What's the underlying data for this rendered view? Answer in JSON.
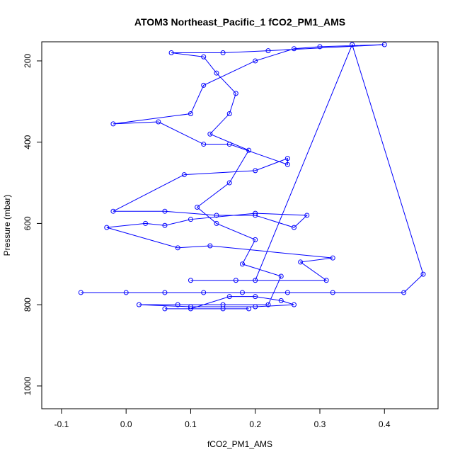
{
  "chart_data": {
    "type": "scatter",
    "title": "ATOM3 Northeast_Pacific_1 fCO2_PM1_AMS",
    "x_label": "fCO2_PM1_AMS",
    "y_label": "Pressure (mbar)",
    "color": "#0000ff",
    "x": [
      -0.07,
      0.0,
      0.06,
      0.12,
      0.18,
      0.25,
      0.32,
      0.43,
      0.46,
      0.35,
      0.2,
      0.17,
      0.1,
      0.31,
      0.27,
      0.32,
      0.13,
      0.08,
      -0.03,
      0.03,
      0.06,
      0.1,
      0.2,
      0.28,
      0.26,
      0.2,
      0.14,
      0.06,
      -0.02,
      0.09,
      0.2,
      0.25,
      0.25,
      0.16,
      0.12,
      0.05,
      -0.02,
      0.1,
      0.12,
      0.2,
      0.26,
      0.3,
      0.4,
      0.22,
      0.15,
      0.07,
      0.12,
      0.14,
      0.17,
      0.16,
      0.13,
      0.19,
      0.16,
      0.11,
      0.14,
      0.2,
      0.18,
      0.24,
      0.22,
      0.15,
      0.08,
      0.02,
      0.1,
      0.2,
      0.26,
      0.24,
      0.2,
      0.16,
      0.1,
      0.06,
      0.15,
      0.19
    ],
    "values": [
      770,
      770,
      770,
      770,
      770,
      770,
      770,
      770,
      725,
      160,
      740,
      740,
      740,
      740,
      695,
      685,
      655,
      660,
      610,
      600,
      605,
      590,
      575,
      580,
      610,
      580,
      580,
      570,
      570,
      480,
      470,
      440,
      455,
      405,
      405,
      350,
      355,
      330,
      260,
      200,
      170,
      165,
      160,
      175,
      180,
      180,
      190,
      230,
      280,
      330,
      380,
      420,
      500,
      560,
      600,
      640,
      700,
      730,
      800,
      800,
      800,
      800,
      805,
      805,
      800,
      790,
      780,
      780,
      810,
      810,
      810,
      810
    ],
    "xlim": [
      -0.1306,
      0.483
    ],
    "ylim": [
      1056,
      153
    ],
    "xticks": [
      -0.1,
      {
        "value": 0.0,
        "label": "0.0"
      },
      0.1,
      0.2,
      0.3,
      0.4
    ],
    "yticks": [
      200,
      400,
      600,
      800,
      1000
    ]
  }
}
